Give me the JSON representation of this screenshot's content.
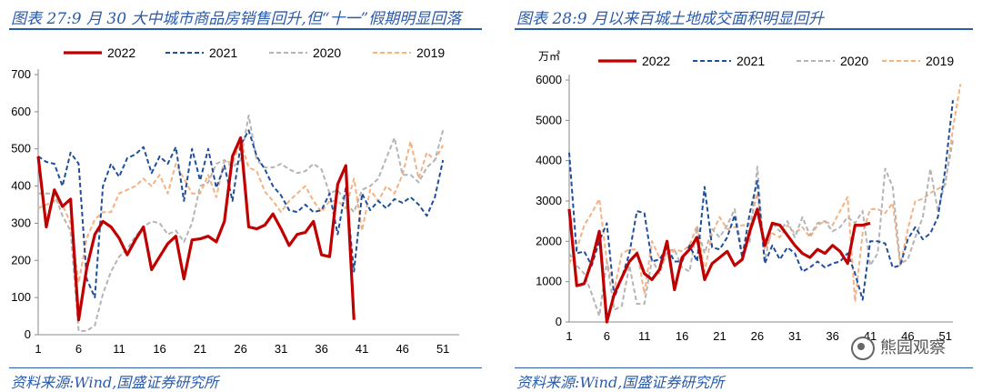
{
  "charts": [
    {
      "title": "图表 27:9 月 30 大中城市商品房销售回升,但“十一”假期明显回落",
      "source": "资料来源:Wind,国盛证券研究所",
      "chart_data": {
        "type": "line",
        "unit_label": "",
        "x_tick_labels": [
          "1",
          "6",
          "11",
          "16",
          "21",
          "26",
          "31",
          "36",
          "41",
          "46",
          "51"
        ],
        "y_ticks": [
          0,
          100,
          200,
          300,
          400,
          500,
          600,
          700
        ],
        "ylim": [
          0,
          700
        ],
        "xlim": [
          1,
          53
        ],
        "legend_position": "top",
        "series": [
          {
            "name": "2022",
            "color": "#c00000",
            "dash": "solid",
            "width": 3.2,
            "values": [
              480,
              290,
              390,
              345,
              365,
              40,
              180,
              270,
              305,
              290,
              260,
              215,
              255,
              290,
              175,
              210,
              245,
              265,
              150,
              255,
              258,
              265,
              250,
              305,
              480,
              530,
              290,
              285,
              295,
              325,
              285,
              240,
              270,
              275,
              305,
              215,
              210,
              405,
              455,
              40
            ]
          },
          {
            "name": "2021",
            "color": "#1f4e9c",
            "dash": "5,3",
            "width": 2,
            "values": [
              480,
              465,
              460,
              400,
              490,
              460,
              150,
              100,
              400,
              460,
              425,
              475,
              485,
              505,
              435,
              480,
              460,
              505,
              360,
              500,
              415,
              500,
              395,
              455,
              360,
              510,
              550,
              480,
              445,
              400,
              375,
              335,
              330,
              350,
              330,
              335,
              380,
              270,
              395,
              170,
              380,
              335,
              360,
              340,
              365,
              355,
              370,
              350,
              320,
              370,
              470
            ]
          },
          {
            "name": "2020",
            "color": "#b4b4b4",
            "dash": "5,3",
            "width": 2,
            "values": [
              380,
              380,
              380,
              320,
              280,
              10,
              10,
              25,
              110,
              170,
              210,
              230,
              265,
              290,
              305,
              300,
              270,
              280,
              250,
              300,
              400,
              410,
              460,
              470,
              450,
              470,
              590,
              470,
              450,
              450,
              460,
              445,
              435,
              440,
              460,
              445,
              380,
              390,
              355,
              330,
              390,
              400,
              420,
              475,
              530,
              430,
              430,
              410,
              450,
              470,
              550
            ]
          },
          {
            "name": "2019",
            "color": "#f4b183",
            "dash": "5,3",
            "width": 2,
            "values": [
              340,
              350,
              360,
              350,
              300,
              140,
              260,
              310,
              330,
              330,
              380,
              390,
              400,
              420,
              400,
              430,
              380,
              460,
              420,
              380,
              380,
              430,
              370,
              470,
              460,
              520,
              450,
              440,
              385,
              360,
              330,
              360,
              380,
              400,
              360,
              330,
              360,
              360,
              340,
              420,
              280,
              390,
              360,
              400,
              380,
              430,
              520,
              420,
              490,
              470,
              510
            ]
          }
        ]
      }
    },
    {
      "title": "图表 28:9 月以来百城土地成交面积明显回升",
      "source": "资料来源:Wind,国盛证券研究所",
      "chart_data": {
        "type": "line",
        "unit_label": "万㎡",
        "x_tick_labels": [
          "1",
          "6",
          "11",
          "16",
          "21",
          "26",
          "31",
          "36",
          "41",
          "46",
          "51"
        ],
        "y_ticks": [
          0,
          1000,
          2000,
          3000,
          4000,
          5000,
          6000
        ],
        "ylim": [
          0,
          6000
        ],
        "xlim": [
          1,
          52
        ],
        "legend_position": "top",
        "series": [
          {
            "name": "2022",
            "color": "#c00000",
            "dash": "solid",
            "width": 3.2,
            "values": [
              2800,
              900,
              950,
              1500,
              2250,
              0,
              700,
              1100,
              1500,
              1700,
              1200,
              1050,
              1300,
              2000,
              800,
              1600,
              1800,
              2100,
              1050,
              1450,
              1600,
              1750,
              1400,
              1550,
              2250,
              2800,
              1900,
              2450,
              2400,
              2150,
              1900,
              1700,
              1600,
              1800,
              1700,
              1900,
              1750,
              1450,
              2400,
              2400,
              2450
            ]
          },
          {
            "name": "2021",
            "color": "#1f4e9c",
            "dash": "5,3",
            "width": 2,
            "values": [
              4200,
              1700,
              1750,
              1400,
              2000,
              2450,
              600,
              1100,
              1700,
              2750,
              2700,
              1500,
              1550,
              1850,
              1500,
              1500,
              1900,
              1500,
              3350,
              1850,
              1800,
              2100,
              2650,
              1600,
              2700,
              3500,
              1450,
              1900,
              1550,
              1850,
              1700,
              1250,
              1350,
              1500,
              1350,
              1450,
              1500,
              1700,
              1200,
              550,
              2000,
              2000,
              1950,
              1350,
              1400,
              2050,
              2350,
              2050,
              2200,
              2600,
              3800,
              5500
            ]
          },
          {
            "name": "2020",
            "color": "#b4b4b4",
            "dash": "5,3",
            "width": 2,
            "values": [
              1700,
              1400,
              1200,
              700,
              150,
              1500,
              300,
              400,
              1400,
              450,
              450,
              1550,
              1200,
              1750,
              1800,
              1350,
              1250,
              2350,
              1700,
              2300,
              2100,
              2400,
              2800,
              1700,
              2000,
              3850,
              1500,
              2450,
              2250,
              2500,
              2100,
              2600,
              2150,
              2450,
              2500,
              2250,
              2350,
              2600,
              2450,
              2750,
              1400,
              1700,
              3800,
              3350,
              1450,
              1550,
              2100,
              2600,
              3800,
              2750,
              3500,
              4500
            ]
          },
          {
            "name": "2019",
            "color": "#f4b183",
            "dash": "5,3",
            "width": 2,
            "values": [
              1450,
              1800,
              2400,
              2700,
              3050,
              1500,
              800,
              1700,
              1800,
              1800,
              700,
              2000,
              1600,
              1550,
              1800,
              1750,
              1900,
              2400,
              1250,
              2200,
              2600,
              2300,
              2350,
              2400,
              2400,
              3200,
              1800,
              2200,
              2100,
              2400,
              2200,
              2350,
              2100,
              2400,
              2500,
              2400,
              2750,
              3100,
              500,
              2200,
              2800,
              2800,
              2700,
              2950,
              1400,
              2300,
              3000,
              3050,
              3200,
              3300,
              3400,
              4800,
              5900
            ]
          }
        ]
      }
    }
  ],
  "watermark": "熊园观察"
}
